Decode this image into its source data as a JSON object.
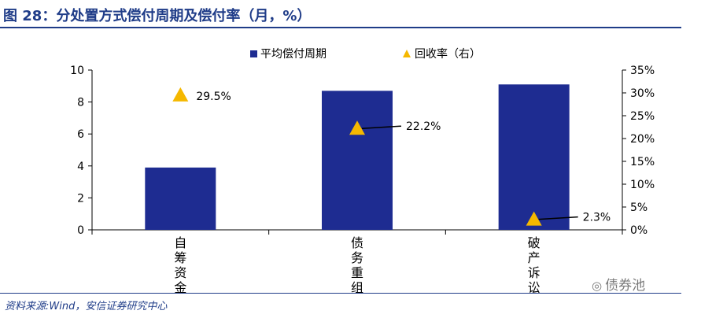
{
  "title": "图 28：分处置方式偿付周期及偿付率（月，%）",
  "source": "资料来源:Wind，安信证券研究中心",
  "watermark": "债券池",
  "colors": {
    "title": "#1F3C88",
    "bar": "#1E2C91",
    "marker": "#F5B800",
    "axis": "#000000"
  },
  "chart_data": {
    "type": "bar",
    "categories": [
      "自筹资金",
      "债务重组",
      "破产诉讼"
    ],
    "series": [
      {
        "name": "平均偿付周期",
        "type": "bar",
        "axis": "left",
        "values": [
          3.9,
          8.7,
          9.1
        ]
      },
      {
        "name": "回收率（右）",
        "type": "scatter",
        "marker": "triangle",
        "axis": "right",
        "values": [
          29.5,
          22.2,
          2.3
        ]
      }
    ],
    "data_labels": [
      "29.5%",
      "22.2%",
      "2.3%"
    ],
    "y_left": {
      "min": 0,
      "max": 10,
      "ticks": [
        "0",
        "2",
        "4",
        "6",
        "8",
        "10"
      ]
    },
    "y_right": {
      "min": 0,
      "max": 35,
      "ticks": [
        "0%",
        "5%",
        "10%",
        "15%",
        "20%",
        "25%",
        "30%",
        "35%"
      ]
    },
    "legend_position": "top",
    "grid": false
  }
}
